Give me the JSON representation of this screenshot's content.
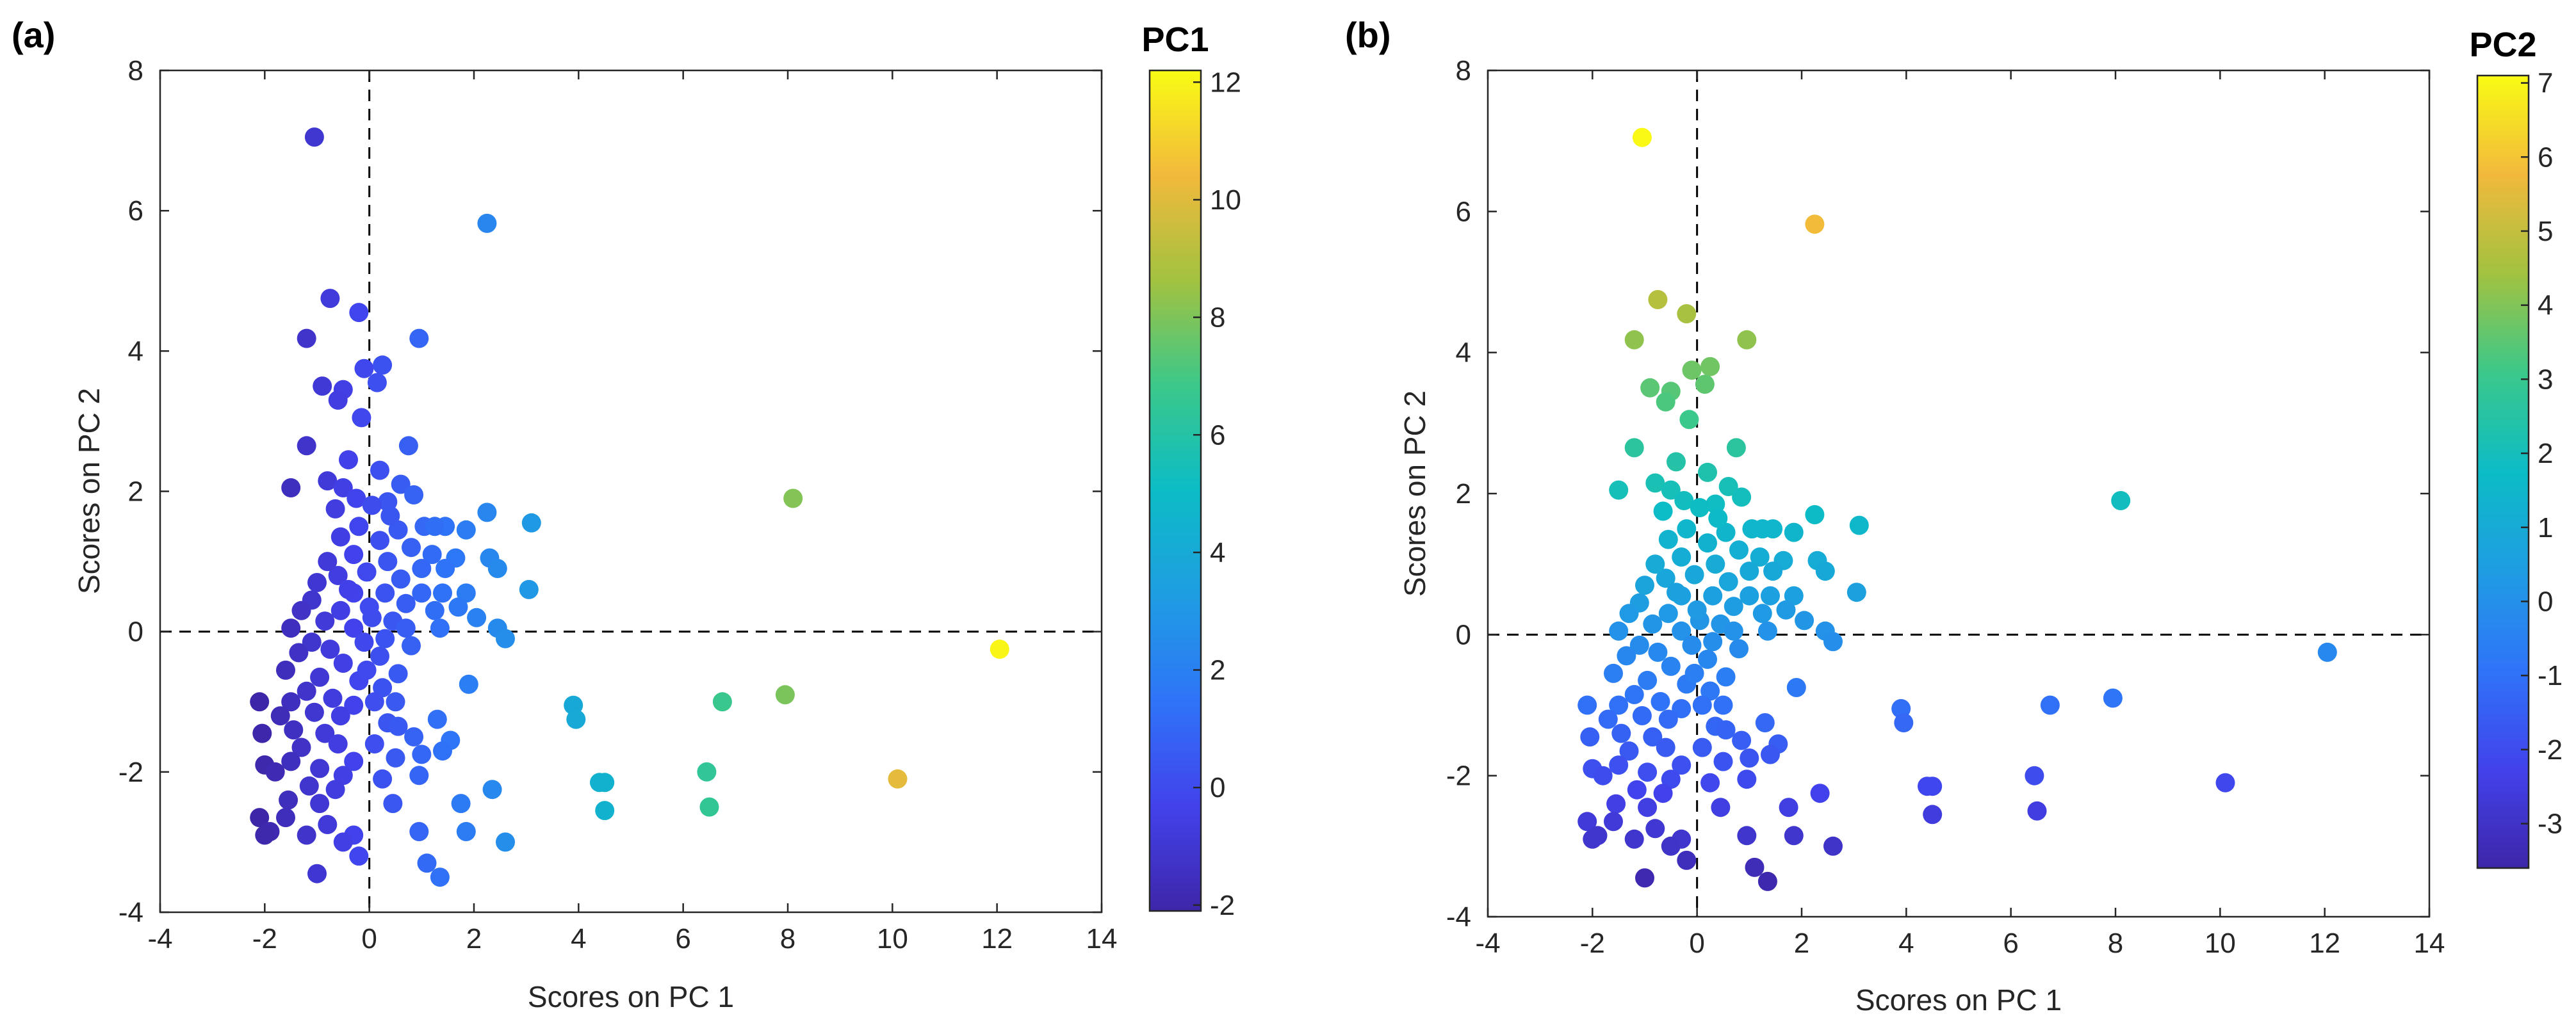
{
  "chart_data": [
    {
      "type": "scatter",
      "panel_label": "(a)",
      "xlabel": "Scores on PC 1",
      "ylabel": "Scores on PC 2",
      "xlim": [
        -4,
        14
      ],
      "ylim": [
        -4,
        8
      ],
      "xticks": [
        "-4",
        "-2",
        "0",
        "2",
        "4",
        "6",
        "8",
        "10",
        "12",
        "14"
      ],
      "yticks": [
        "-4",
        "-2",
        "0",
        "2",
        "4",
        "6",
        "8"
      ],
      "reference_lines": {
        "x": 0,
        "y": 0,
        "style": "dashed"
      },
      "color_by": "PC1",
      "colorbar": {
        "title": "PC1",
        "range": [
          -2.1,
          12.2
        ],
        "ticks": [
          "-2",
          "0",
          "2",
          "4",
          "6",
          "8",
          "10",
          "12"
        ]
      }
    },
    {
      "type": "scatter",
      "panel_label": "(b)",
      "xlabel": "Scores on PC 1",
      "ylabel": "Scores on PC 2",
      "xlim": [
        -4,
        14
      ],
      "ylim": [
        -4,
        8
      ],
      "xticks": [
        "-4",
        "-2",
        "0",
        "2",
        "4",
        "6",
        "8",
        "10",
        "12",
        "14"
      ],
      "yticks": [
        "-4",
        "-2",
        "0",
        "2",
        "4",
        "6",
        "8"
      ],
      "reference_lines": {
        "x": 0,
        "y": 0,
        "style": "dashed"
      },
      "color_by": "PC2",
      "colorbar": {
        "title": "PC2",
        "range": [
          -3.6,
          7.1
        ],
        "ticks": [
          "-3",
          "-2",
          "-1",
          "0",
          "1",
          "2",
          "3",
          "4",
          "5",
          "6",
          "7"
        ]
      }
    }
  ],
  "points": [
    [
      -1.05,
      7.05
    ],
    [
      2.25,
      5.82
    ],
    [
      -0.75,
      4.75
    ],
    [
      -0.2,
      4.55
    ],
    [
      -1.2,
      4.18
    ],
    [
      0.95,
      4.18
    ],
    [
      -0.1,
      3.75
    ],
    [
      0.25,
      3.8
    ],
    [
      -0.9,
      3.5
    ],
    [
      -0.5,
      3.45
    ],
    [
      0.15,
      3.55
    ],
    [
      -0.6,
      3.3
    ],
    [
      -0.15,
      3.05
    ],
    [
      -1.2,
      2.65
    ],
    [
      0.75,
      2.65
    ],
    [
      -0.4,
      2.45
    ],
    [
      0.2,
      2.3
    ],
    [
      -1.5,
      2.05
    ],
    [
      -0.8,
      2.15
    ],
    [
      -0.5,
      2.05
    ],
    [
      0.6,
      2.1
    ],
    [
      -0.25,
      1.9
    ],
    [
      0.35,
      1.85
    ],
    [
      0.05,
      1.8
    ],
    [
      -0.65,
      1.75
    ],
    [
      0.85,
      1.95
    ],
    [
      8.1,
      1.9
    ],
    [
      2.25,
      1.7
    ],
    [
      3.1,
      1.55
    ],
    [
      1.05,
      1.5
    ],
    [
      1.45,
      1.5
    ],
    [
      1.85,
      1.45
    ],
    [
      1.25,
      1.5
    ],
    [
      0.55,
      1.45
    ],
    [
      -0.55,
      1.35
    ],
    [
      0.2,
      1.3
    ],
    [
      -0.3,
      1.1
    ],
    [
      0.35,
      1.0
    ],
    [
      0.8,
      1.2
    ],
    [
      1.2,
      1.1
    ],
    [
      1.65,
      1.05
    ],
    [
      2.3,
      1.05
    ],
    [
      1.0,
      0.9
    ],
    [
      1.45,
      0.9
    ],
    [
      2.45,
      0.9
    ],
    [
      0.6,
      0.75
    ],
    [
      -0.6,
      0.8
    ],
    [
      -0.05,
      0.85
    ],
    [
      0.3,
      0.55
    ],
    [
      -0.3,
      0.55
    ],
    [
      3.05,
      0.6
    ],
    [
      1.4,
      0.55
    ],
    [
      1.85,
      0.55
    ],
    [
      0.7,
      0.4
    ],
    [
      0.05,
      0.2
    ],
    [
      -0.55,
      0.3
    ],
    [
      -1.1,
      0.45
    ],
    [
      -1.3,
      0.3
    ],
    [
      -0.85,
      0.15
    ],
    [
      1.25,
      0.3
    ],
    [
      1.7,
      0.35
    ],
    [
      2.05,
      0.2
    ],
    [
      -1.5,
      0.05
    ],
    [
      -0.3,
      0.05
    ],
    [
      0.45,
      0.15
    ],
    [
      2.45,
      0.05
    ],
    [
      -1.1,
      -0.15
    ],
    [
      -0.75,
      -0.25
    ],
    [
      -0.1,
      -0.15
    ],
    [
      0.8,
      -0.2
    ],
    [
      1.35,
      0.05
    ],
    [
      2.6,
      -0.1
    ],
    [
      12.05,
      -0.25
    ],
    [
      -1.35,
      -0.3
    ],
    [
      -0.5,
      -0.45
    ],
    [
      0.2,
      -0.35
    ],
    [
      0.55,
      -0.6
    ],
    [
      -1.6,
      -0.55
    ],
    [
      -0.95,
      -0.65
    ],
    [
      -0.2,
      -0.7
    ],
    [
      -1.2,
      -0.85
    ],
    [
      0.25,
      -0.8
    ],
    [
      1.9,
      -0.75
    ],
    [
      -0.7,
      -0.95
    ],
    [
      -0.3,
      -1.05
    ],
    [
      0.5,
      -1.0
    ],
    [
      -1.5,
      -1.0
    ],
    [
      -2.1,
      -1.0
    ],
    [
      -1.7,
      -1.2
    ],
    [
      -1.05,
      -1.15
    ],
    [
      -0.55,
      -1.2
    ],
    [
      0.35,
      -1.3
    ],
    [
      1.3,
      -1.25
    ],
    [
      -2.05,
      -1.45
    ],
    [
      -1.45,
      -1.4
    ],
    [
      -0.85,
      -1.45
    ],
    [
      0.55,
      -1.35
    ],
    [
      3.9,
      -1.05
    ],
    [
      3.95,
      -1.25
    ],
    [
      6.75,
      -1.0
    ],
    [
      7.95,
      -0.9
    ],
    [
      -1.3,
      -1.65
    ],
    [
      -0.6,
      -1.6
    ],
    [
      0.1,
      -1.6
    ],
    [
      0.85,
      -1.5
    ],
    [
      1.55,
      -1.55
    ],
    [
      -2.0,
      -1.9
    ],
    [
      -1.5,
      -1.85
    ],
    [
      -0.95,
      -1.95
    ],
    [
      -0.3,
      -1.85
    ],
    [
      0.5,
      -1.8
    ],
    [
      1.0,
      -1.75
    ],
    [
      -0.5,
      -2.05
    ],
    [
      0.25,
      -2.1
    ],
    [
      0.95,
      -2.05
    ],
    [
      1.4,
      -1.7
    ],
    [
      -1.8,
      -2.0
    ],
    [
      -1.15,
      -2.2
    ],
    [
      -0.65,
      -2.25
    ],
    [
      6.45,
      -2.0
    ],
    [
      10.1,
      -2.1
    ],
    [
      4.4,
      -2.15
    ],
    [
      4.5,
      -2.15
    ],
    [
      -1.55,
      -2.4
    ],
    [
      -0.95,
      -2.45
    ],
    [
      0.45,
      -2.45
    ],
    [
      1.75,
      -2.45
    ],
    [
      2.35,
      -2.25
    ],
    [
      6.5,
      -2.5
    ],
    [
      4.5,
      -2.55
    ],
    [
      -2.1,
      -2.65
    ],
    [
      -1.6,
      -2.65
    ],
    [
      -0.8,
      -2.75
    ],
    [
      -1.9,
      -2.85
    ],
    [
      -1.2,
      -2.9
    ],
    [
      -2.0,
      -2.9
    ],
    [
      -0.3,
      -2.9
    ],
    [
      0.95,
      -2.85
    ],
    [
      1.85,
      -2.85
    ],
    [
      2.6,
      -3.0
    ],
    [
      -0.5,
      -3.0
    ],
    [
      -0.2,
      -3.2
    ],
    [
      1.1,
      -3.3
    ],
    [
      -1.0,
      -3.45
    ],
    [
      1.35,
      -3.5
    ],
    [
      -0.05,
      -0.55
    ],
    [
      0.0,
      0.35
    ],
    [
      -0.4,
      0.6
    ],
    [
      0.4,
      1.65
    ],
    [
      -0.8,
      1.0
    ],
    [
      0.1,
      -1.0
    ],
    [
      -0.2,
      1.5
    ],
    [
      0.7,
      0.05
    ],
    [
      1.0,
      0.55
    ],
    [
      -1.0,
      0.7
    ],
    [
      0.3,
      -0.1
    ]
  ]
}
